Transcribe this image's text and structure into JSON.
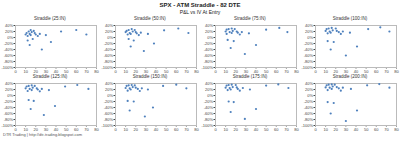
{
  "title": "SPX - ATM Straddle - 82 DTE",
  "subtitle": "P&L vs IV At Entry",
  "caption": "DTR Trading | http://dtr-trading.blogspot.com",
  "chart_data": [
    {
      "type": "scatter",
      "title": "Straddle (25:IN)",
      "color": "#4f81bd",
      "marker": "circle",
      "x": [
        10,
        11,
        12,
        12,
        13,
        14,
        14,
        15,
        15,
        16,
        17,
        18,
        19,
        20,
        22,
        24,
        26,
        30,
        35,
        45,
        60,
        70
      ],
      "values": [
        10,
        15,
        5,
        -10,
        20,
        12,
        -25,
        8,
        25,
        18,
        -5,
        22,
        15,
        10,
        5,
        12,
        -40,
        8,
        -15,
        20,
        25,
        10
      ],
      "xlim": [
        0,
        80
      ],
      "xticks": [
        0,
        10,
        20,
        30,
        40,
        50,
        60,
        70,
        80
      ],
      "ylim": [
        -100,
        40
      ],
      "yticks": [
        {
          "value": 40,
          "label": "40%"
        },
        {
          "value": 20,
          "label": "20%"
        },
        {
          "value": 0,
          "label": "0%"
        },
        {
          "value": -20,
          "label": "-20%"
        },
        {
          "value": -40,
          "label": "-40%"
        },
        {
          "value": -60,
          "label": "-60%"
        },
        {
          "value": -80,
          "label": "-80%"
        },
        {
          "value": -100,
          "label": "-100%"
        }
      ]
    },
    {
      "type": "scatter",
      "title": "Straddle (50:IN)",
      "color": "#4f81bd",
      "marker": "circle",
      "x": [
        10,
        11,
        12,
        13,
        13,
        14,
        15,
        15,
        16,
        17,
        18,
        19,
        20,
        21,
        23,
        25,
        28,
        32,
        38,
        48,
        62,
        72
      ],
      "values": [
        18,
        22,
        10,
        -5,
        25,
        15,
        -30,
        12,
        28,
        20,
        -10,
        25,
        18,
        14,
        8,
        16,
        -45,
        12,
        -20,
        24,
        30,
        15
      ],
      "xlim": [
        0,
        80
      ],
      "xticks": [
        0,
        10,
        20,
        30,
        40,
        50,
        60,
        70,
        80
      ],
      "ylim": [
        -100,
        40
      ],
      "yticks": [
        {
          "value": 40,
          "label": "40%"
        },
        {
          "value": 20,
          "label": "20%"
        },
        {
          "value": 0,
          "label": "0%"
        },
        {
          "value": -20,
          "label": "-20%"
        },
        {
          "value": -40,
          "label": "-40%"
        },
        {
          "value": -60,
          "label": "-60%"
        },
        {
          "value": -80,
          "label": "-80%"
        },
        {
          "value": -100,
          "label": "-100%"
        }
      ]
    },
    {
      "type": "scatter",
      "title": "Straddle (75:IN)",
      "color": "#4f81bd",
      "marker": "circle",
      "x": [
        10,
        11,
        11,
        12,
        13,
        14,
        15,
        16,
        16,
        17,
        18,
        19,
        21,
        22,
        24,
        26,
        29,
        33,
        40,
        50,
        63,
        71
      ],
      "values": [
        20,
        26,
        12,
        -8,
        28,
        18,
        -35,
        15,
        30,
        22,
        -12,
        28,
        20,
        16,
        10,
        18,
        -55,
        14,
        -25,
        26,
        32,
        18
      ],
      "xlim": [
        0,
        80
      ],
      "xticks": [
        0,
        10,
        20,
        30,
        40,
        50,
        60,
        70,
        80
      ],
      "ylim": [
        -100,
        40
      ],
      "yticks": [
        {
          "value": 40,
          "label": "40%"
        },
        {
          "value": 20,
          "label": "20%"
        },
        {
          "value": 0,
          "label": "0%"
        },
        {
          "value": -20,
          "label": "-20%"
        },
        {
          "value": -40,
          "label": "-40%"
        },
        {
          "value": -60,
          "label": "-60%"
        },
        {
          "value": -80,
          "label": "-80%"
        },
        {
          "value": -100,
          "label": "-100%"
        }
      ]
    },
    {
      "type": "scatter",
      "title": "Straddle (100:IN)",
      "color": "#4f81bd",
      "marker": "circle",
      "x": [
        10,
        11,
        12,
        12,
        13,
        14,
        15,
        15,
        16,
        17,
        18,
        20,
        21,
        23,
        25,
        27,
        30,
        34,
        41,
        52,
        64,
        73
      ],
      "values": [
        22,
        28,
        14,
        -12,
        30,
        20,
        -40,
        16,
        32,
        24,
        -15,
        30,
        22,
        18,
        12,
        20,
        -60,
        16,
        -30,
        28,
        34,
        20
      ],
      "xlim": [
        0,
        80
      ],
      "xticks": [
        0,
        10,
        20,
        30,
        40,
        50,
        60,
        70,
        80
      ],
      "ylim": [
        -100,
        40
      ],
      "yticks": [
        {
          "value": 40,
          "label": "40%"
        },
        {
          "value": 20,
          "label": "20%"
        },
        {
          "value": 0,
          "label": "0%"
        },
        {
          "value": -20,
          "label": "-20%"
        },
        {
          "value": -40,
          "label": "-40%"
        },
        {
          "value": -60,
          "label": "-60%"
        },
        {
          "value": -80,
          "label": "-80%"
        },
        {
          "value": -100,
          "label": "-100%"
        }
      ]
    },
    {
      "type": "scatter",
      "title": "Straddle (125:IN)",
      "color": "#4f81bd",
      "marker": "circle",
      "x": [
        10,
        11,
        12,
        13,
        13,
        14,
        15,
        16,
        16,
        17,
        18,
        19,
        21,
        22,
        24,
        26,
        28,
        33,
        39,
        49,
        61,
        72
      ],
      "values": [
        24,
        30,
        15,
        -15,
        32,
        22,
        -45,
        18,
        34,
        26,
        -18,
        32,
        24,
        20,
        14,
        22,
        -65,
        18,
        -35,
        30,
        35,
        22
      ],
      "xlim": [
        0,
        80
      ],
      "xticks": [
        0,
        10,
        20,
        30,
        40,
        50,
        60,
        70,
        80
      ],
      "ylim": [
        -100,
        40
      ],
      "yticks": [
        {
          "value": 40,
          "label": "40%"
        },
        {
          "value": 20,
          "label": "20%"
        },
        {
          "value": 0,
          "label": "0%"
        },
        {
          "value": -20,
          "label": "-20%"
        },
        {
          "value": -40,
          "label": "-40%"
        },
        {
          "value": -60,
          "label": "-60%"
        },
        {
          "value": -80,
          "label": "-80%"
        },
        {
          "value": -100,
          "label": "-100%"
        }
      ]
    },
    {
      "type": "scatter",
      "title": "Straddle (150:IN)",
      "color": "#4f81bd",
      "marker": "circle",
      "x": [
        10,
        11,
        12,
        12,
        13,
        14,
        14,
        15,
        16,
        17,
        18,
        19,
        20,
        22,
        24,
        26,
        29,
        32,
        37,
        47,
        60,
        70
      ],
      "values": [
        25,
        32,
        16,
        -18,
        34,
        24,
        -50,
        20,
        35,
        28,
        -20,
        34,
        26,
        22,
        15,
        24,
        -70,
        20,
        -40,
        32,
        36,
        24
      ],
      "xlim": [
        0,
        80
      ],
      "xticks": [
        0,
        10,
        20,
        30,
        40,
        50,
        60,
        70,
        80
      ],
      "ylim": [
        -100,
        40
      ],
      "yticks": [
        {
          "value": 40,
          "label": "40%"
        },
        {
          "value": 20,
          "label": "20%"
        },
        {
          "value": 0,
          "label": "0%"
        },
        {
          "value": -20,
          "label": "-20%"
        },
        {
          "value": -40,
          "label": "-40%"
        },
        {
          "value": -60,
          "label": "-60%"
        },
        {
          "value": -80,
          "label": "-80%"
        },
        {
          "value": -100,
          "label": "-100%"
        }
      ]
    },
    {
      "type": "scatter",
      "title": "Straddle (175:IN)",
      "color": "#4f81bd",
      "marker": "circle",
      "x": [
        10,
        11,
        12,
        13,
        13,
        14,
        15,
        15,
        16,
        17,
        18,
        20,
        21,
        22,
        24,
        27,
        29,
        34,
        40,
        50,
        62,
        72
      ],
      "values": [
        26,
        33,
        18,
        -20,
        35,
        25,
        -55,
        20,
        36,
        28,
        -22,
        35,
        27,
        22,
        16,
        25,
        -78,
        20,
        -45,
        33,
        37,
        25
      ],
      "xlim": [
        0,
        80
      ],
      "xticks": [
        0,
        10,
        20,
        30,
        40,
        50,
        60,
        70,
        80
      ],
      "ylim": [
        -100,
        40
      ],
      "yticks": [
        {
          "value": 40,
          "label": "40%"
        },
        {
          "value": 20,
          "label": "20%"
        },
        {
          "value": 0,
          "label": "0%"
        },
        {
          "value": -20,
          "label": "-20%"
        },
        {
          "value": -40,
          "label": "-40%"
        },
        {
          "value": -60,
          "label": "-60%"
        },
        {
          "value": -80,
          "label": "-80%"
        },
        {
          "value": -100,
          "label": "-100%"
        }
      ]
    },
    {
      "type": "scatter",
      "title": "Straddle (200:IN)",
      "color": "#4f81bd",
      "marker": "circle",
      "x": [
        10,
        11,
        12,
        12,
        13,
        14,
        15,
        16,
        16,
        17,
        18,
        19,
        21,
        23,
        25,
        27,
        30,
        35,
        41,
        51,
        63,
        73
      ],
      "values": [
        27,
        34,
        18,
        -22,
        36,
        26,
        -60,
        22,
        37,
        30,
        -25,
        36,
        28,
        24,
        16,
        26,
        -85,
        22,
        -50,
        34,
        38,
        26
      ],
      "xlim": [
        0,
        80
      ],
      "xticks": [
        0,
        10,
        20,
        30,
        40,
        50,
        60,
        70,
        80
      ],
      "ylim": [
        -100,
        40
      ],
      "yticks": [
        {
          "value": 40,
          "label": "40%"
        },
        {
          "value": 20,
          "label": "20%"
        },
        {
          "value": 0,
          "label": "0%"
        },
        {
          "value": -20,
          "label": "-20%"
        },
        {
          "value": -40,
          "label": "-40%"
        },
        {
          "value": -60,
          "label": "-60%"
        },
        {
          "value": -80,
          "label": "-80%"
        },
        {
          "value": -100,
          "label": "-100%"
        }
      ]
    }
  ]
}
